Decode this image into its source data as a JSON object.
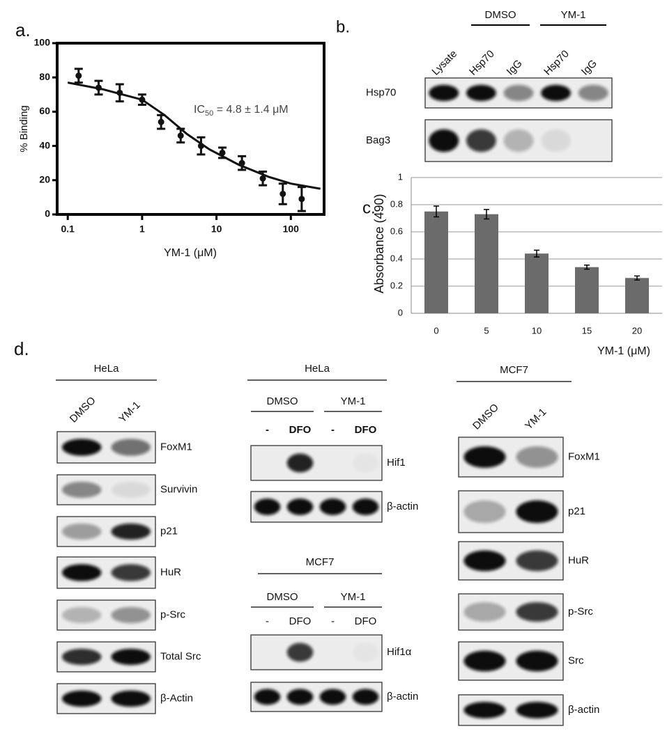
{
  "chart_data": [
    {
      "type": "scatter",
      "panel_label": "a.",
      "x_label": "YM-1 (μM)",
      "y_label": "% Binding",
      "annotation": {
        "text": "IC",
        "subscript": "50",
        "rest": " = 4.8 ± 1.4 μM"
      },
      "log_x": true,
      "xlim": [
        0.072,
        280
      ],
      "ylim": [
        0,
        100
      ],
      "xticks": [
        0.1,
        1,
        10,
        100
      ],
      "yticks": [
        0,
        20,
        40,
        60,
        80,
        100
      ],
      "color": "#111111",
      "x": [
        0.14,
        0.26,
        0.5,
        1,
        1.8,
        3.3,
        6.2,
        12,
        22,
        42,
        78,
        140
      ],
      "values": [
        81,
        74,
        71,
        67,
        54,
        46,
        40,
        36,
        30,
        21,
        12,
        9
      ],
      "errors": [
        4,
        4,
        5,
        3,
        4,
        4,
        5,
        3,
        4,
        4,
        6,
        7
      ],
      "fit": {
        "x": [
          0.1,
          0.3,
          1,
          2,
          4,
          8,
          20,
          50,
          100,
          250
        ],
        "values": [
          77,
          73,
          67,
          58,
          47,
          38,
          29,
          22,
          18,
          15
        ]
      }
    },
    {
      "type": "bar",
      "panel_label": "c.",
      "x_label": "YM-1 (μM)",
      "y_label": "Absorbance (490)",
      "categories": [
        "0",
        "5",
        "10",
        "15",
        "20"
      ],
      "values": [
        0.75,
        0.73,
        0.44,
        0.34,
        0.26
      ],
      "errors": [
        0.04,
        0.035,
        0.025,
        0.015,
        0.015
      ],
      "color": "#6b6b6b",
      "ylim": [
        0,
        1
      ],
      "yticks": [
        0,
        0.2,
        0.4,
        0.6,
        0.8,
        1
      ],
      "grid": true
    }
  ],
  "panel_b": {
    "label": "b.",
    "groups": [
      "DMSO",
      "YM-1"
    ],
    "lanes": [
      "Lysate",
      "Hsp70",
      "IgG",
      "Hsp70",
      "IgG"
    ],
    "rows": [
      "Hsp70",
      "Bag3"
    ]
  },
  "panel_d": {
    "label": "d.",
    "blots": [
      {
        "title": "HeLa",
        "lanes": [
          "DMSO",
          "YM-1"
        ],
        "rows": [
          "FoxM1",
          "Survivin",
          "p21",
          "HuR",
          "p-Src",
          "Total Src",
          "β-Actin"
        ]
      },
      {
        "title": "HeLa",
        "groups": [
          "DMSO",
          "YM-1"
        ],
        "lanes": [
          "-",
          "DFO",
          "-",
          "DFO"
        ],
        "rows": [
          "Hif1",
          "β-actin"
        ]
      },
      {
        "title": "MCF7",
        "groups": [
          "DMSO",
          "YM-1"
        ],
        "lanes": [
          "-",
          "DFO",
          "-",
          "DFO"
        ],
        "rows": [
          "Hif1α",
          "β-actin"
        ]
      },
      {
        "title": "MCF7",
        "lanes": [
          "DMSO",
          "YM-1"
        ],
        "rows": [
          "FoxM1",
          "p21",
          "HuR",
          "p-Src",
          "Src",
          "β-actin"
        ]
      }
    ]
  }
}
